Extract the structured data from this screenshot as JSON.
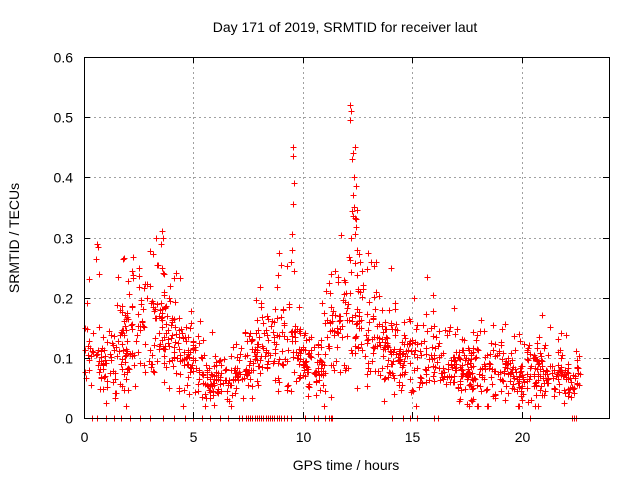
{
  "chart_data": {
    "type": "scatter",
    "title": "Day 171 of 2019, SRMTID for receiver laut",
    "xlabel": "GPS time / hours",
    "ylabel": "SRMTID / TECUs",
    "xlim": [
      0,
      24
    ],
    "ylim": [
      0,
      0.6
    ],
    "xticks": [
      0,
      5,
      10,
      15,
      20
    ],
    "yticks": [
      0,
      0.1,
      0.2,
      0.3,
      0.4,
      0.5,
      0.6
    ],
    "xtick_labels": [
      "0",
      "5",
      "10",
      "15",
      "20"
    ],
    "ytick_labels": [
      "0",
      "0.1",
      "0.2",
      "0.3",
      "0.4",
      "0.5",
      "0.6"
    ],
    "grid": true,
    "marker": "+",
    "color": "#ff0000",
    "trend": [
      [
        0.0,
        0.11
      ],
      [
        0.5,
        0.1
      ],
      [
        1.0,
        0.09
      ],
      [
        1.5,
        0.11
      ],
      [
        2.0,
        0.14
      ],
      [
        2.5,
        0.15
      ],
      [
        3.0,
        0.15
      ],
      [
        3.5,
        0.14
      ],
      [
        4.0,
        0.13
      ],
      [
        4.5,
        0.11
      ],
      [
        5.0,
        0.085
      ],
      [
        5.5,
        0.07
      ],
      [
        6.0,
        0.065
      ],
      [
        6.5,
        0.06
      ],
      [
        7.0,
        0.07
      ],
      [
        7.5,
        0.085
      ],
      [
        8.0,
        0.11
      ],
      [
        8.5,
        0.13
      ],
      [
        9.0,
        0.12
      ],
      [
        9.5,
        0.115
      ],
      [
        10.0,
        0.1
      ],
      [
        10.5,
        0.09
      ],
      [
        11.0,
        0.1
      ],
      [
        11.5,
        0.15
      ],
      [
        12.0,
        0.18
      ],
      [
        12.5,
        0.17
      ],
      [
        13.0,
        0.14
      ],
      [
        13.5,
        0.12
      ],
      [
        14.0,
        0.105
      ],
      [
        14.5,
        0.1
      ],
      [
        15.0,
        0.1
      ],
      [
        15.5,
        0.1
      ],
      [
        16.0,
        0.095
      ],
      [
        16.5,
        0.09
      ],
      [
        17.0,
        0.085
      ],
      [
        17.5,
        0.08
      ],
      [
        18.0,
        0.075
      ],
      [
        18.5,
        0.075
      ],
      [
        19.0,
        0.08
      ],
      [
        19.5,
        0.075
      ],
      [
        20.0,
        0.07
      ],
      [
        20.5,
        0.075
      ],
      [
        21.0,
        0.08
      ],
      [
        21.5,
        0.075
      ],
      [
        22.0,
        0.07
      ],
      [
        22.5,
        0.065
      ],
      [
        22.7,
        0.065
      ]
    ],
    "spikes": [
      [
        9.55,
        0.45
      ],
      [
        9.55,
        0.435
      ],
      [
        9.6,
        0.39
      ],
      [
        9.55,
        0.355
      ],
      [
        9.5,
        0.305
      ],
      [
        9.5,
        0.28
      ],
      [
        9.45,
        0.26
      ],
      [
        9.6,
        0.245
      ],
      [
        9.0,
        0.255
      ],
      [
        8.9,
        0.275
      ],
      [
        12.15,
        0.52
      ],
      [
        12.2,
        0.51
      ],
      [
        12.15,
        0.495
      ],
      [
        12.4,
        0.45
      ],
      [
        12.3,
        0.44
      ],
      [
        12.25,
        0.43
      ],
      [
        12.35,
        0.4
      ],
      [
        12.45,
        0.385
      ],
      [
        12.3,
        0.37
      ],
      [
        12.35,
        0.35
      ],
      [
        12.5,
        0.345
      ],
      [
        12.3,
        0.335
      ],
      [
        12.45,
        0.33
      ],
      [
        12.4,
        0.305
      ],
      [
        12.5,
        0.28
      ],
      [
        12.6,
        0.26
      ],
      [
        12.2,
        0.3
      ],
      [
        0.6,
        0.29
      ],
      [
        0.65,
        0.285
      ],
      [
        0.55,
        0.265
      ],
      [
        0.7,
        0.24
      ],
      [
        3.55,
        0.31
      ],
      [
        3.6,
        0.3
      ],
      [
        3.5,
        0.29
      ],
      [
        3.4,
        0.255
      ],
      [
        3.65,
        0.24
      ],
      [
        13.0,
        0.275
      ],
      [
        13.1,
        0.26
      ],
      [
        14.05,
        0.25
      ],
      [
        15.7,
        0.235
      ],
      [
        2.5,
        0.25
      ],
      [
        1.55,
        0.235
      ],
      [
        3.0,
        0.22
      ],
      [
        11.3,
        0.24
      ],
      [
        11.2,
        0.225
      ]
    ],
    "zeros": [
      0.35,
      0.6,
      1.0,
      1.35,
      1.7,
      2.1,
      2.55,
      3.0,
      3.6,
      4.1,
      4.6,
      5.0,
      5.4,
      5.75,
      6.2,
      6.6,
      7.1,
      7.2,
      7.4,
      7.5,
      7.6,
      7.7,
      7.8,
      7.9,
      8.0,
      8.1,
      8.2,
      8.3,
      8.4,
      8.5,
      8.6,
      8.7,
      8.8,
      8.9,
      9.0,
      9.15,
      9.3,
      9.45,
      10.1,
      10.5,
      10.7,
      11.0,
      11.2,
      11.3,
      11.35,
      14.1,
      14.6,
      14.9,
      15.2,
      16.0,
      16.2,
      20.4,
      22.3,
      22.4,
      22.5
    ],
    "n_points": 1300,
    "seed": 171
  }
}
